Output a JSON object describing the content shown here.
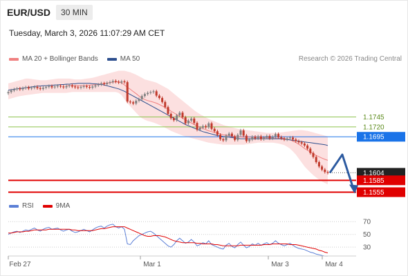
{
  "header": {
    "symbol": "EUR/USD",
    "timeframe": "30 MIN",
    "timestamp": "Tuesday, March 3, 2026 11:07:29 AM CET",
    "credit": "Research © 2026 Trading Central"
  },
  "legend": [
    {
      "label": "MA 20 + Bollinger Bands",
      "color": "#f08080"
    },
    {
      "label": "MA 50",
      "color": "#2d4f8e"
    }
  ],
  "rsi_legend": [
    {
      "label": "RSI",
      "color": "#5b7fd6"
    },
    {
      "label": "9MA",
      "color": "#e00000"
    }
  ],
  "colors": {
    "support": "#e00000",
    "pivot": "#1a73e8",
    "resistance": "#8bc34a",
    "arrow": "#2c5aa0",
    "candle_up": "#808080",
    "candle_down": "#c0392b",
    "bollinger": "#fbd5d5",
    "rsi": "#5b7fd6",
    "rsi_ma": "#e00000"
  },
  "chart_data": [
    {
      "type": "candlestick",
      "x_ticks": [
        "Feb 27",
        "Mar 1",
        "Mar 3",
        "Mar 4"
      ],
      "ylim": [
        1.1535,
        1.1875
      ],
      "levels": [
        {
          "label": "1.1745",
          "value": 1.1745,
          "kind": "resistance"
        },
        {
          "label": "1.1720",
          "value": 1.172,
          "kind": "resistance"
        },
        {
          "label": "1.1695",
          "value": 1.1695,
          "kind": "pivot"
        },
        {
          "label": "1.1604",
          "value": 1.1604,
          "kind": "last"
        },
        {
          "label": "1.1585",
          "value": 1.1585,
          "kind": "support"
        },
        {
          "label": "1.1555",
          "value": 1.1555,
          "kind": "support"
        }
      ],
      "close_series": [
        1.1808,
        1.1812,
        1.1815,
        1.1817,
        1.1815,
        1.1818,
        1.182,
        1.1817,
        1.1819,
        1.1821,
        1.1818,
        1.1816,
        1.1819,
        1.1821,
        1.1823,
        1.182,
        1.1822,
        1.1824,
        1.1822,
        1.182,
        1.1823,
        1.1825,
        1.1822,
        1.182,
        1.1819,
        1.1821,
        1.1823,
        1.1821,
        1.1819,
        1.1822,
        1.1825,
        1.1827,
        1.183,
        1.1828,
        1.1831,
        1.1833,
        1.1836,
        1.1834,
        1.1832,
        1.1835,
        1.1833,
        1.1784,
        1.1782,
        1.1779,
        1.1786,
        1.179,
        1.1798,
        1.1803,
        1.1806,
        1.1808,
        1.181,
        1.1799,
        1.1793,
        1.1783,
        1.177,
        1.1753,
        1.1742,
        1.1737,
        1.1749,
        1.1756,
        1.1744,
        1.1729,
        1.1736,
        1.1741,
        1.173,
        1.1713,
        1.1718,
        1.1722,
        1.1719,
        1.1729,
        1.1715,
        1.1709,
        1.17,
        1.1689,
        1.1686,
        1.1698,
        1.1703,
        1.1696,
        1.1687,
        1.17,
        1.1711,
        1.1698,
        1.1684,
        1.1688,
        1.1695,
        1.1691,
        1.1696,
        1.1689,
        1.1693,
        1.1697,
        1.1691,
        1.1695,
        1.1702,
        1.1694,
        1.1691,
        1.1688,
        1.1691,
        1.1693,
        1.1688,
        1.1684,
        1.1681,
        1.1678,
        1.1673,
        1.1665,
        1.1654,
        1.1644,
        1.1631,
        1.162,
        1.1612,
        1.1606,
        1.1604
      ],
      "bb_upper": [
        1.183,
        1.1832,
        1.1834,
        1.1836,
        1.1838,
        1.184,
        1.1842,
        1.1842,
        1.1841,
        1.184,
        1.1839,
        1.1838,
        1.1838,
        1.1838,
        1.1839,
        1.184,
        1.1841,
        1.1842,
        1.1842,
        1.1842,
        1.1842,
        1.1842,
        1.1841,
        1.184,
        1.184,
        1.184,
        1.1841,
        1.1842,
        1.1843,
        1.1844,
        1.1846,
        1.1848,
        1.185,
        1.1852,
        1.1854,
        1.1856,
        1.1858,
        1.186,
        1.1862,
        1.1862,
        1.1862,
        1.186,
        1.1858,
        1.1855,
        1.1852,
        1.1848,
        1.1844,
        1.184,
        1.1838,
        1.1836,
        1.1834,
        1.1832,
        1.1828,
        1.1824,
        1.182,
        1.1816,
        1.181,
        1.1804,
        1.1798,
        1.1792,
        1.1786,
        1.178,
        1.1774,
        1.1768,
        1.1762,
        1.1757,
        1.1752,
        1.1748,
        1.1744,
        1.174,
        1.1737,
        1.1734,
        1.1731,
        1.1728,
        1.1725,
        1.1723,
        1.1721,
        1.1719,
        1.1717,
        1.1715,
        1.1714,
        1.1713,
        1.1712,
        1.1711,
        1.171,
        1.1709,
        1.1708,
        1.1707,
        1.1706,
        1.1705,
        1.1705,
        1.1705,
        1.1705,
        1.1705,
        1.1706,
        1.1707,
        1.1708,
        1.1709,
        1.171,
        1.1711,
        1.1712,
        1.1712,
        1.1711,
        1.171,
        1.1708,
        1.1706,
        1.1704,
        1.1702,
        1.17,
        1.1698,
        1.1696
      ],
      "bb_lower": [
        1.179,
        1.1792,
        1.1794,
        1.1796,
        1.1798,
        1.1799,
        1.18,
        1.1801,
        1.1802,
        1.1803,
        1.1804,
        1.1805,
        1.1806,
        1.1806,
        1.1806,
        1.1806,
        1.1806,
        1.1806,
        1.1806,
        1.1806,
        1.1806,
        1.1807,
        1.1808,
        1.1808,
        1.1808,
        1.1808,
        1.1808,
        1.1808,
        1.1808,
        1.1808,
        1.1808,
        1.1808,
        1.1808,
        1.1808,
        1.1808,
        1.1808,
        1.1808,
        1.1808,
        1.1806,
        1.18,
        1.179,
        1.178,
        1.1772,
        1.1764,
        1.1756,
        1.1748,
        1.1742,
        1.1738,
        1.1735,
        1.1733,
        1.1731,
        1.1728,
        1.1725,
        1.1722,
        1.1718,
        1.1714,
        1.171,
        1.1707,
        1.1704,
        1.1701,
        1.1698,
        1.1696,
        1.1694,
        1.1692,
        1.169,
        1.1688,
        1.1686,
        1.1684,
        1.1682,
        1.168,
        1.1679,
        1.1678,
        1.1677,
        1.1676,
        1.1675,
        1.1675,
        1.1675,
        1.1675,
        1.1675,
        1.1675,
        1.1675,
        1.1675,
        1.1676,
        1.1677,
        1.1678,
        1.1679,
        1.168,
        1.168,
        1.168,
        1.168,
        1.168,
        1.168,
        1.1679,
        1.1678,
        1.1676,
        1.1674,
        1.167,
        1.1665,
        1.1658,
        1.165,
        1.164,
        1.163,
        1.162,
        1.1612,
        1.1605,
        1.1598,
        1.1592,
        1.1587,
        1.1582,
        1.1578,
        1.1575
      ],
      "ma20_start": 20,
      "ma50": [
        1.1813,
        1.1814,
        1.1815,
        1.1816,
        1.1817,
        1.1818,
        1.1819,
        1.182,
        1.1821,
        1.1822,
        1.1823,
        1.1823,
        1.1824,
        1.1824,
        1.1825,
        1.1825,
        1.1826,
        1.1826,
        1.1827,
        1.1827,
        1.1828,
        1.1828,
        1.1829,
        1.1829,
        1.183,
        1.183,
        1.183,
        1.183,
        1.183,
        1.1829,
        1.1829,
        1.1828,
        1.1827,
        1.1826,
        1.1824,
        1.1822,
        1.182,
        1.1818,
        1.1816,
        1.1813,
        1.181,
        1.1806,
        1.1802,
        1.1798,
        1.1794,
        1.179,
        1.1786,
        1.1782,
        1.1778,
        1.1774,
        1.177,
        1.1766,
        1.1762,
        1.1758,
        1.1754,
        1.175,
        1.1746,
        1.1742,
        1.1738,
        1.1734,
        1.173,
        1.1726,
        1.1723,
        1.172,
        1.1717,
        1.1714,
        1.1711,
        1.1708,
        1.1706,
        1.1704,
        1.1702,
        1.17,
        1.1698,
        1.1697,
        1.1696,
        1.1695,
        1.1694,
        1.1693,
        1.1692,
        1.1691,
        1.169,
        1.169,
        1.169,
        1.169,
        1.169,
        1.169,
        1.169,
        1.169,
        1.169,
        1.169,
        1.169,
        1.169,
        1.169,
        1.169,
        1.169,
        1.1689,
        1.1688,
        1.1687,
        1.1686,
        1.1685,
        1.1684,
        1.1683,
        1.1682,
        1.1681,
        1.168,
        1.1679,
        1.1678,
        1.1677,
        1.1676,
        1.1675,
        1.1673
      ],
      "forecast": [
        [
          1.1604,
          1.165
        ],
        [
          1.165,
          1.1555
        ]
      ]
    },
    {
      "type": "line",
      "name": "RSI",
      "y_ticks": [
        "70",
        "50",
        "30"
      ],
      "ylim": [
        15,
        80
      ],
      "rsi": [
        50,
        52,
        54,
        55,
        53,
        55,
        57,
        56,
        58,
        60,
        57,
        55,
        58,
        60,
        61,
        58,
        59,
        60,
        57,
        55,
        57,
        58,
        55,
        53,
        54,
        56,
        58,
        56,
        54,
        57,
        60,
        62,
        63,
        60,
        63,
        65,
        66,
        62,
        60,
        62,
        58,
        35,
        34,
        40,
        44,
        48,
        50,
        52,
        54,
        55,
        52,
        48,
        44,
        40,
        36,
        32,
        30,
        34,
        40,
        44,
        40,
        36,
        38,
        42,
        38,
        32,
        34,
        37,
        35,
        40,
        34,
        32,
        30,
        28,
        27,
        33,
        36,
        31,
        29,
        34,
        38,
        33,
        29,
        31,
        35,
        33,
        36,
        33,
        35,
        37,
        34,
        36,
        40,
        36,
        34,
        32,
        34,
        36,
        33,
        30,
        28,
        27,
        26,
        24,
        22,
        21,
        19,
        18,
        17,
        16,
        16
      ],
      "rsi_ma": [
        52,
        52,
        53,
        54,
        54,
        54,
        55,
        55,
        56,
        57,
        57,
        57,
        57,
        57,
        58,
        58,
        58,
        58,
        58,
        58,
        58,
        58,
        57,
        57,
        56,
        56,
        56,
        56,
        56,
        56,
        57,
        58,
        59,
        59,
        60,
        61,
        62,
        62,
        62,
        62,
        62,
        60,
        58,
        56,
        54,
        52,
        50,
        48,
        47,
        47,
        48,
        48,
        48,
        47,
        46,
        44,
        42,
        40,
        39,
        38,
        37,
        37,
        37,
        37,
        37,
        36,
        36,
        35,
        35,
        35,
        35,
        34,
        34,
        33,
        32,
        32,
        32,
        32,
        32,
        32,
        33,
        33,
        33,
        33,
        33,
        33,
        33,
        33,
        34,
        34,
        34,
        35,
        35,
        35,
        35,
        35,
        35,
        34,
        34,
        34,
        33,
        32,
        31,
        30,
        29,
        28,
        27,
        25,
        24,
        22,
        21
      ]
    }
  ]
}
